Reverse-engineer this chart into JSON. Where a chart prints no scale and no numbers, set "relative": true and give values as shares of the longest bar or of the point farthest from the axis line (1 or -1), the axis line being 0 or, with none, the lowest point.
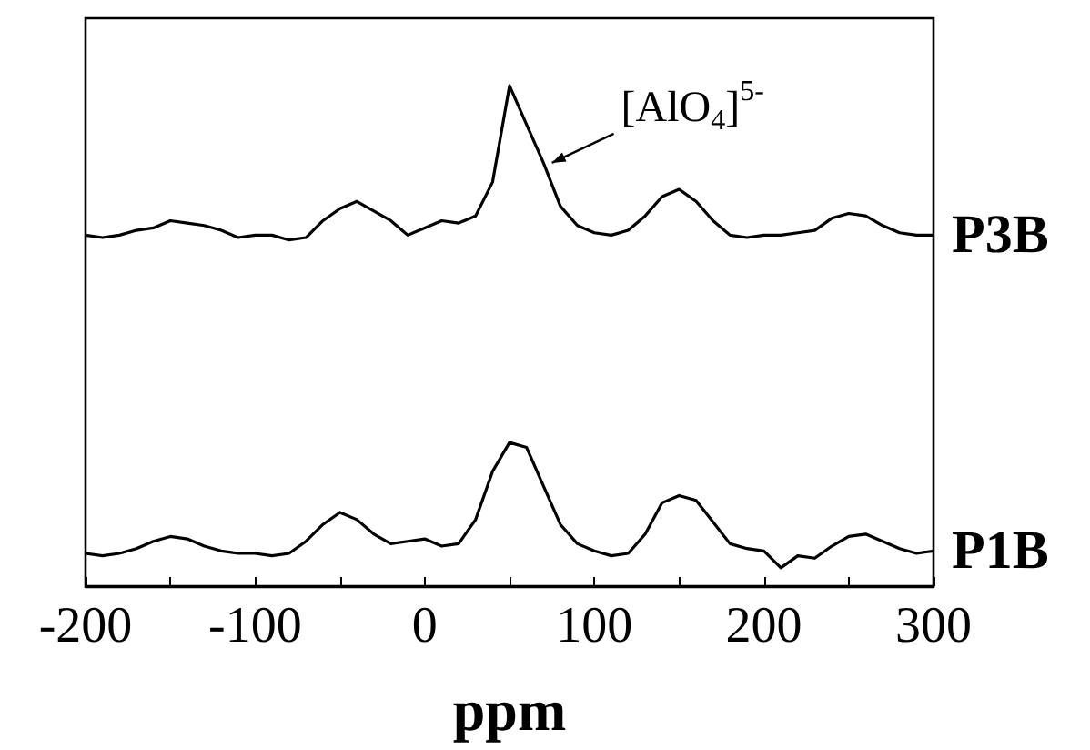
{
  "chart_data": {
    "type": "line",
    "relative": true,
    "xlabel": "ppm",
    "xlim": [
      -200,
      300
    ],
    "xticks": [
      -200,
      {
        "value": -150,
        "label": null
      },
      -100,
      {
        "value": -50,
        "label": null
      },
      0,
      {
        "value": 50,
        "label": null
      },
      100,
      {
        "value": 150,
        "label": null
      },
      200,
      {
        "value": 250,
        "label": null
      },
      300
    ],
    "x": [
      -200,
      -190,
      -180,
      -170,
      -160,
      -150,
      -140,
      -130,
      -120,
      -110,
      -100,
      -90,
      -80,
      -70,
      -60,
      -50,
      -40,
      -30,
      -20,
      -10,
      0,
      10,
      20,
      30,
      40,
      50,
      60,
      70,
      80,
      90,
      100,
      110,
      120,
      130,
      140,
      150,
      160,
      170,
      180,
      190,
      200,
      210,
      220,
      230,
      240,
      250,
      260,
      270,
      280,
      290,
      300
    ],
    "series": [
      {
        "name": "P3B",
        "color": "#000000",
        "values": [
          0.69,
          0.685,
          0.69,
          0.7,
          0.705,
          0.72,
          0.715,
          0.71,
          0.7,
          0.685,
          0.69,
          0.69,
          0.68,
          0.685,
          0.72,
          0.745,
          0.76,
          0.74,
          0.72,
          0.69,
          0.705,
          0.72,
          0.715,
          0.73,
          0.8,
          1,
          0.92,
          0.84,
          0.75,
          0.71,
          0.695,
          0.69,
          0.7,
          0.73,
          0.77,
          0.785,
          0.76,
          0.72,
          0.69,
          0.685,
          0.69,
          0.69,
          0.695,
          0.7,
          0.725,
          0.735,
          0.73,
          0.71,
          0.695,
          0.69,
          0.69
        ]
      },
      {
        "name": "P1B",
        "color": "#000000",
        "values": [
          0.03,
          0.025,
          0.03,
          0.04,
          0.055,
          0.065,
          0.06,
          0.045,
          0.035,
          0.03,
          0.03,
          0.025,
          0.03,
          0.055,
          0.09,
          0.115,
          0.1,
          0.07,
          0.05,
          0.055,
          0.06,
          0.045,
          0.05,
          0.1,
          0.2,
          0.26,
          0.25,
          0.17,
          0.09,
          0.05,
          0.035,
          0.025,
          0.03,
          0.07,
          0.135,
          0.15,
          0.14,
          0.095,
          0.05,
          0.04,
          0.035,
          0,
          0.025,
          0.02,
          0.045,
          0.065,
          0.07,
          0.055,
          0.04,
          0.03,
          0.035
        ]
      }
    ],
    "annotations": [
      {
        "text": "[AlO$_{4}$]$^{5-}$",
        "x": 75,
        "y": 0.84
      }
    ],
    "legend": false,
    "grid": false,
    "marker": "none",
    "line_style": "solid"
  }
}
